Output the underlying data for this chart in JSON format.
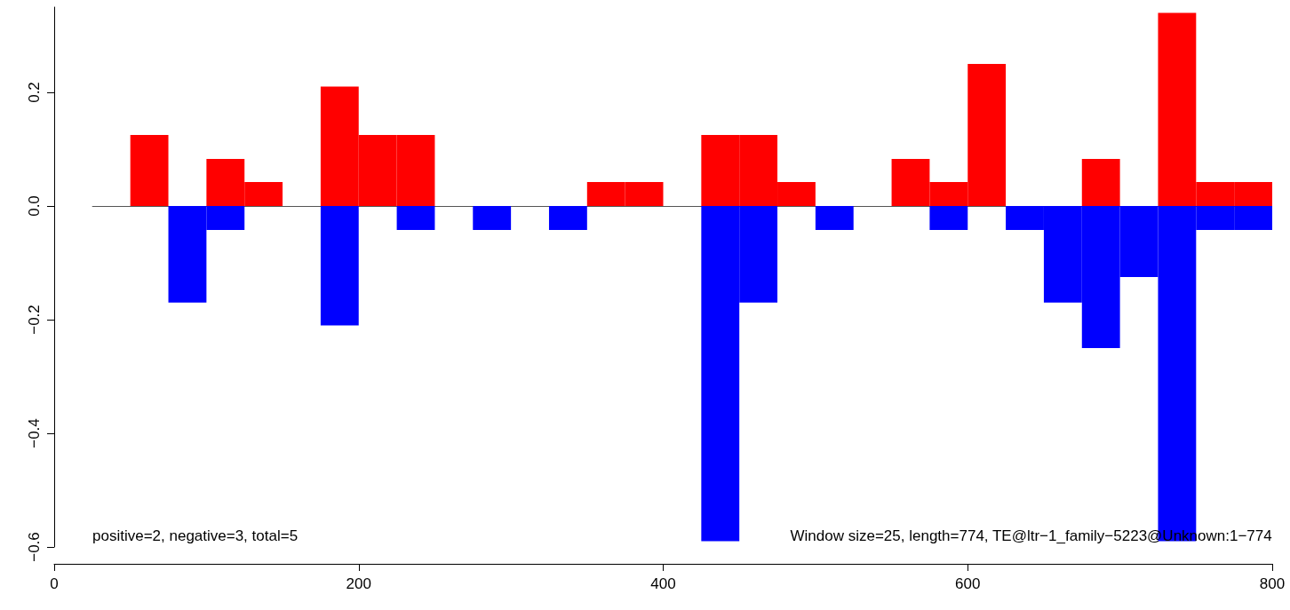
{
  "chart_data": {
    "type": "histogram",
    "bins": [
      25,
      50,
      75,
      100,
      125,
      150,
      175,
      200,
      225,
      250,
      275,
      300,
      325,
      350,
      375,
      400,
      425,
      450,
      475,
      500,
      525,
      550,
      575,
      600,
      625,
      650,
      675,
      700,
      725,
      750,
      775,
      800
    ],
    "series": [
      {
        "color": "#ff0000",
        "values": [
          null,
          0.125,
          null,
          0.083,
          0.042,
          null,
          0.21,
          0.125,
          0.125,
          null,
          null,
          null,
          null,
          0.042,
          0.042,
          null,
          0.125,
          0.125,
          0.042,
          null,
          null,
          0.083,
          0.042,
          0.25,
          null,
          null,
          0.083,
          null,
          0.34,
          0.042,
          0.042
        ]
      },
      {
        "color": "#0000ff",
        "values": [
          null,
          null,
          -0.17,
          -0.042,
          null,
          null,
          -0.21,
          null,
          -0.042,
          null,
          -0.042,
          null,
          -0.042,
          null,
          null,
          null,
          -0.59,
          -0.17,
          null,
          -0.042,
          null,
          null,
          -0.042,
          null,
          -0.042,
          -0.17,
          -0.25,
          -0.125,
          -0.59,
          -0.042,
          -0.042
        ]
      }
    ],
    "xlim": [
      0,
      800
    ],
    "xticks": [
      0,
      200,
      400,
      600,
      800
    ],
    "ylim": [
      -0.6,
      0.35
    ],
    "yticks": [
      {
        "value": -0.6,
        "label": "−0.6"
      },
      {
        "value": -0.4,
        "label": "−0.4"
      },
      {
        "value": -0.2,
        "label": "−0.2"
      },
      {
        "value": 0,
        "label": "0.0"
      },
      {
        "value": 0.2,
        "label": "0.2"
      }
    ],
    "annotations": [
      "positive=2, negative=3, total=5",
      "Window size=25, length=774, TE@ltr−1_family−5223@Unknown:1−774"
    ],
    "xlabel": null
  }
}
